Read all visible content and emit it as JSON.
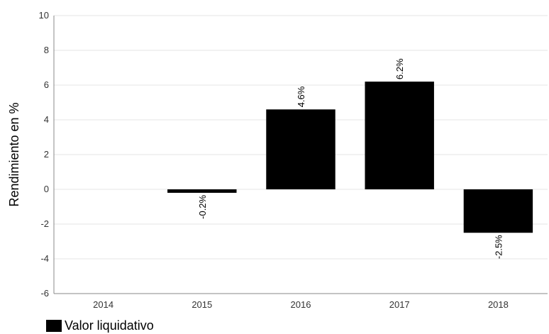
{
  "chart_data": {
    "type": "bar",
    "categories": [
      "2014",
      "2015",
      "2016",
      "2017",
      "2018"
    ],
    "series": [
      {
        "name": "Valor liquidativo",
        "values": [
          null,
          -0.2,
          4.6,
          6.2,
          -2.5
        ]
      }
    ],
    "data_labels": [
      null,
      "-0.2%",
      "4.6%",
      "6.2%",
      "-2.5%"
    ],
    "ylabel": "Rendimiento en %",
    "xlabel": "",
    "ylim": [
      -6,
      10
    ],
    "yticks": [
      10,
      8,
      6,
      4,
      2,
      0,
      -2,
      -4,
      -6
    ],
    "grid": true,
    "legend_position": "bottom-left",
    "colors": {
      "bar": "#000000",
      "grid": "#e6e6e6",
      "axis": "#888888"
    }
  }
}
